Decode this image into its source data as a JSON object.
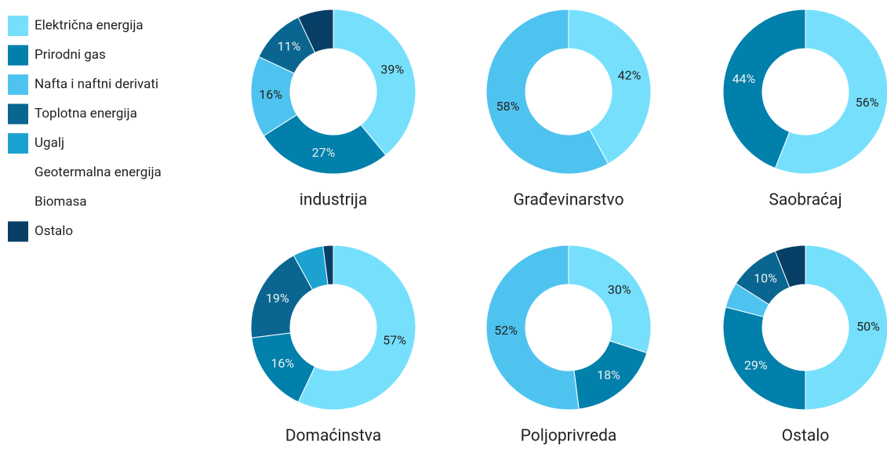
{
  "chart_data": [
    {
      "type": "pie",
      "title": "industrija",
      "categories": [
        "Električna energija",
        "Prirodni gas",
        "Nafta i naftni derivati",
        "Toplotna energija",
        "Ugalj",
        "Geotermalna energija",
        "Biomasa",
        "Ostalo"
      ],
      "colors": [
        "#76e0fc",
        "#0080ab",
        "#4fc3ef",
        "#0a6690",
        "#1ca2d1",
        "#ffffff",
        "#ffffff",
        "#073f67"
      ],
      "values": [
        39,
        27,
        16,
        11,
        0,
        0,
        0,
        7
      ],
      "value_labels": [
        "39%",
        "27%",
        "16%",
        "11%",
        null,
        null,
        null,
        null
      ]
    },
    {
      "type": "pie",
      "title": "Građevinarstvo",
      "values": [
        42,
        0,
        58,
        0,
        0,
        0,
        0,
        0
      ],
      "value_labels": [
        "42%",
        null,
        "58%",
        null,
        null,
        null,
        null,
        null
      ]
    },
    {
      "type": "pie",
      "title": "Saobraćaj",
      "values": [
        56,
        44,
        0,
        0,
        0,
        0,
        0,
        0
      ],
      "value_labels": [
        "56%",
        "44%",
        null,
        null,
        null,
        null,
        null,
        null
      ]
    },
    {
      "type": "pie",
      "title": "Domaćinstva",
      "values": [
        57,
        16,
        0,
        19,
        6,
        0,
        0,
        2
      ],
      "value_labels": [
        "57%",
        "16%",
        null,
        "19%",
        null,
        null,
        null,
        null
      ]
    },
    {
      "type": "pie",
      "title": "Poljoprivreda",
      "values": [
        30,
        18,
        52,
        0,
        0,
        0,
        0,
        0
      ],
      "value_labels": [
        "30%",
        "18%",
        "52%",
        null,
        null,
        null,
        null,
        null
      ]
    },
    {
      "type": "pie",
      "title": "Ostalo",
      "values": [
        50,
        29,
        5,
        10,
        0,
        0,
        0,
        6
      ],
      "value_labels": [
        "50%",
        "29%",
        null,
        "10%",
        null,
        null,
        null,
        null
      ]
    }
  ]
}
